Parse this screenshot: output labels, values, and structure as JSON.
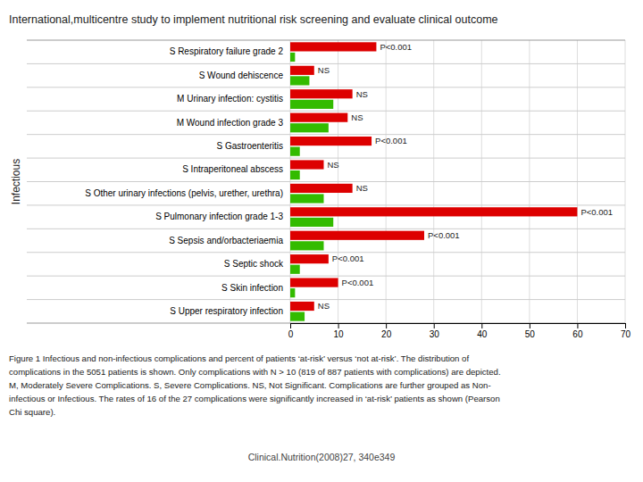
{
  "chart_data": {
    "type": "bar",
    "orientation": "horizontal",
    "title": "International,multicentre study to implement nutritional risk screening and evaluate clinical outcome",
    "ylabel": "Infectious",
    "categories": [
      "S Respiratory failure grade 2",
      "S Wound dehiscence",
      "M Urinary infection: cystitis",
      "M Wound infection grade 3",
      "S Gastroenteritis",
      "S Intraperitoneal abscess",
      "S Other urinary infections (pelvis, urether, urethra)",
      "S Pulmonary infection grade 1-3",
      "S Sepsis and/orbacteriaemia",
      "S Septic shock",
      "S Skin infection",
      "S Upper respiratory infection"
    ],
    "series": [
      {
        "color": "#dd0000",
        "values": [
          18,
          5,
          13,
          12,
          17,
          7,
          13,
          60,
          28,
          8,
          10,
          5
        ],
        "annotations": [
          "P<0.001",
          "NS",
          "NS",
          "NS",
          "P<0.001",
          "NS",
          "NS",
          "P<0.001",
          "P<0.001",
          "P<0.001",
          "P<0.001",
          "NS"
        ]
      },
      {
        "color": "#33bb00",
        "values": [
          1,
          4,
          9,
          8,
          2,
          2,
          7,
          9,
          7,
          2,
          1,
          3
        ]
      }
    ],
    "xlim": [
      0,
      70
    ],
    "xticks": [
      0,
      10,
      20,
      30,
      40,
      50,
      60,
      70
    ],
    "grid": true,
    "caption": [
      "Figure 1   Infectious and non-infectious complications and percent of patients ‘at-risk’ versus ‘not at-risk’. The distribution of",
      "complications in the 5051 patients is shown. Only complications with N > 10 (819 of 887 patients with complications) are depicted.",
      "M, Moderately Severe Complications. S, Severe Complications. NS, Not Significant. Complications are further grouped as Non-",
      "infectious or Infectious. The rates of 16 of the 27 complications were significantly increased in ‘at-risk’ patients as shown (Pearson",
      "Chi square)."
    ],
    "footer": "Clinical.Nutrition(2008)27, 340e349"
  }
}
